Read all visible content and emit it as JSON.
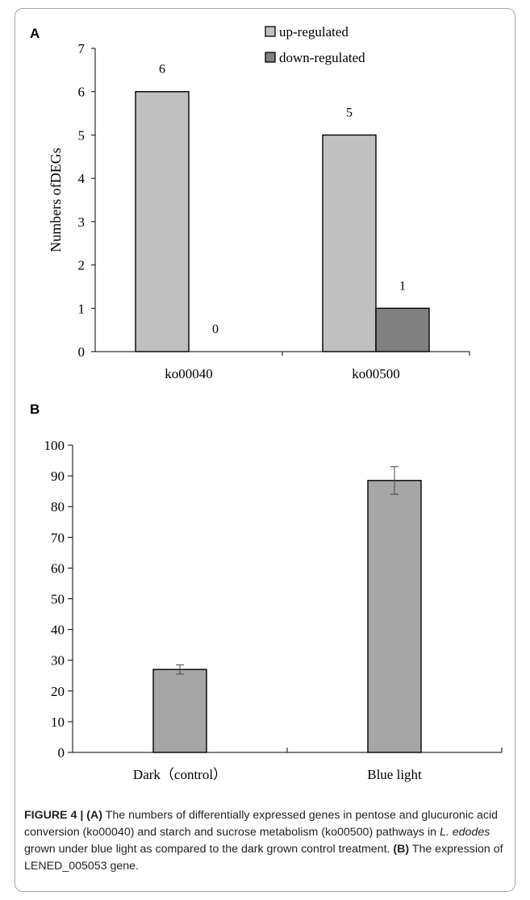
{
  "chart_data": [
    {
      "type": "bar",
      "panel": "A",
      "title": "",
      "xlabel": "",
      "ylabel": "Numbers ofDEGs",
      "categories": [
        "ko00040",
        "ko00500"
      ],
      "series": [
        {
          "name": "up-regulated",
          "values": [
            6,
            5
          ],
          "color": "#c0c0c0"
        },
        {
          "name": "down-regulated",
          "values": [
            0,
            1
          ],
          "color": "#808080"
        }
      ],
      "data_labels": [
        "6",
        "0",
        "5",
        "1"
      ],
      "ylim": [
        0,
        7
      ],
      "yticks": [
        "0",
        "1",
        "2",
        "3",
        "4",
        "5",
        "6",
        "7"
      ],
      "legend_position": "top-right",
      "grid": false
    },
    {
      "type": "bar",
      "panel": "B",
      "title": "",
      "xlabel": "",
      "ylabel": "",
      "categories": [
        "Dark（control）",
        "Blue light"
      ],
      "values": [
        27,
        88.5
      ],
      "error": [
        1.5,
        4.5
      ],
      "color": "#a6a6a6",
      "ylim": [
        0,
        100
      ],
      "yticks": [
        "0",
        "10",
        "20",
        "30",
        "40",
        "50",
        "60",
        "70",
        "80",
        "90",
        "100"
      ],
      "grid": false
    }
  ],
  "caption": {
    "label": "FIGURE 4 |",
    "part_a_marker": "(A)",
    "text_1": " The numbers of differentially expressed genes in pentose and glucuronic acid conversion (ko00040) and starch and sucrose metabolism (ko00500) pathways in ",
    "species": "L. edodes",
    "text_2": " grown under blue light as compared to the dark grown control treatment. ",
    "part_b_marker": "(B)",
    "text_3": " The expression of LENED_005053 gene."
  }
}
